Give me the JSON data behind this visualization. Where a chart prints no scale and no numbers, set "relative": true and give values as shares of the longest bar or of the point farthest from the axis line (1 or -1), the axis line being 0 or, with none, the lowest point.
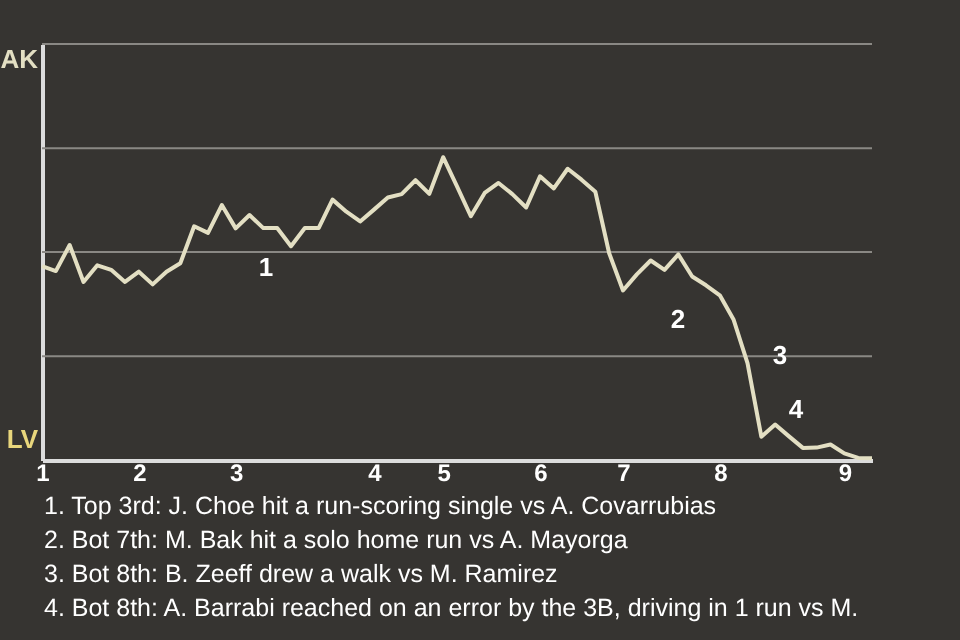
{
  "chart_data": {
    "type": "line",
    "relative": true,
    "categories": [
      "1",
      null,
      null,
      null,
      null,
      null,
      null,
      "2",
      null,
      null,
      null,
      null,
      null,
      null,
      "3",
      null,
      null,
      null,
      null,
      null,
      null,
      null,
      null,
      null,
      "4",
      null,
      null,
      null,
      null,
      "5",
      null,
      null,
      null,
      null,
      null,
      null,
      "6",
      null,
      null,
      null,
      null,
      null,
      "7",
      null,
      null,
      null,
      null,
      null,
      null,
      "8",
      null,
      null,
      null,
      null,
      null,
      null,
      null,
      null,
      "9",
      null,
      null
    ],
    "series": [
      {
        "color": "#e3dfc3",
        "values": [
          0.64,
          0.624,
          0.71,
          0.588,
          0.643,
          0.628,
          0.588,
          0.622,
          0.58,
          0.622,
          0.65,
          0.772,
          0.75,
          0.842,
          0.765,
          0.809,
          0.766,
          0.766,
          0.706,
          0.766,
          0.766,
          0.86,
          0.82,
          0.788,
          0.827,
          0.867,
          0.878,
          0.924,
          0.879,
          1.0,
          0.904,
          0.805,
          0.882,
          0.915,
          0.878,
          0.834,
          0.937,
          0.897,
          0.962,
          0.926,
          0.886,
          0.683,
          0.56,
          0.613,
          0.659,
          0.628,
          0.679,
          0.606,
          0.577,
          0.544,
          0.463,
          0.32,
          0.077,
          0.117,
          0.078,
          0.04,
          0.041,
          0.051,
          0.022,
          0.007,
          0.006
        ]
      }
    ],
    "ref_lines": [
      {
        "axis": "y",
        "value": 0.343,
        "color": "#8a8884"
      },
      {
        "axis": "y",
        "value": 0.687,
        "color": "#8a8884"
      },
      {
        "axis": "y",
        "value": 1.03,
        "color": "#8a8884"
      },
      {
        "axis": "y",
        "value": 1.374,
        "color": "#8a8884"
      }
    ],
    "marker": "none",
    "line_style": "solid",
    "annotations": [
      "AK",
      "LV",
      "1",
      "2",
      "3",
      "4",
      "1. Top 3rd: J. Choe hit a run-scoring single vs A. Covarrubias",
      "2. Bot 7th: M. Bak hit a solo home run vs A. Mayorga",
      "3. Bot 8th: B. Zeeff drew a walk vs M. Ramirez",
      "4. Bot 8th: A. Barrabi reached on an error by the 3B, driving in 1 run vs M."
    ]
  }
}
